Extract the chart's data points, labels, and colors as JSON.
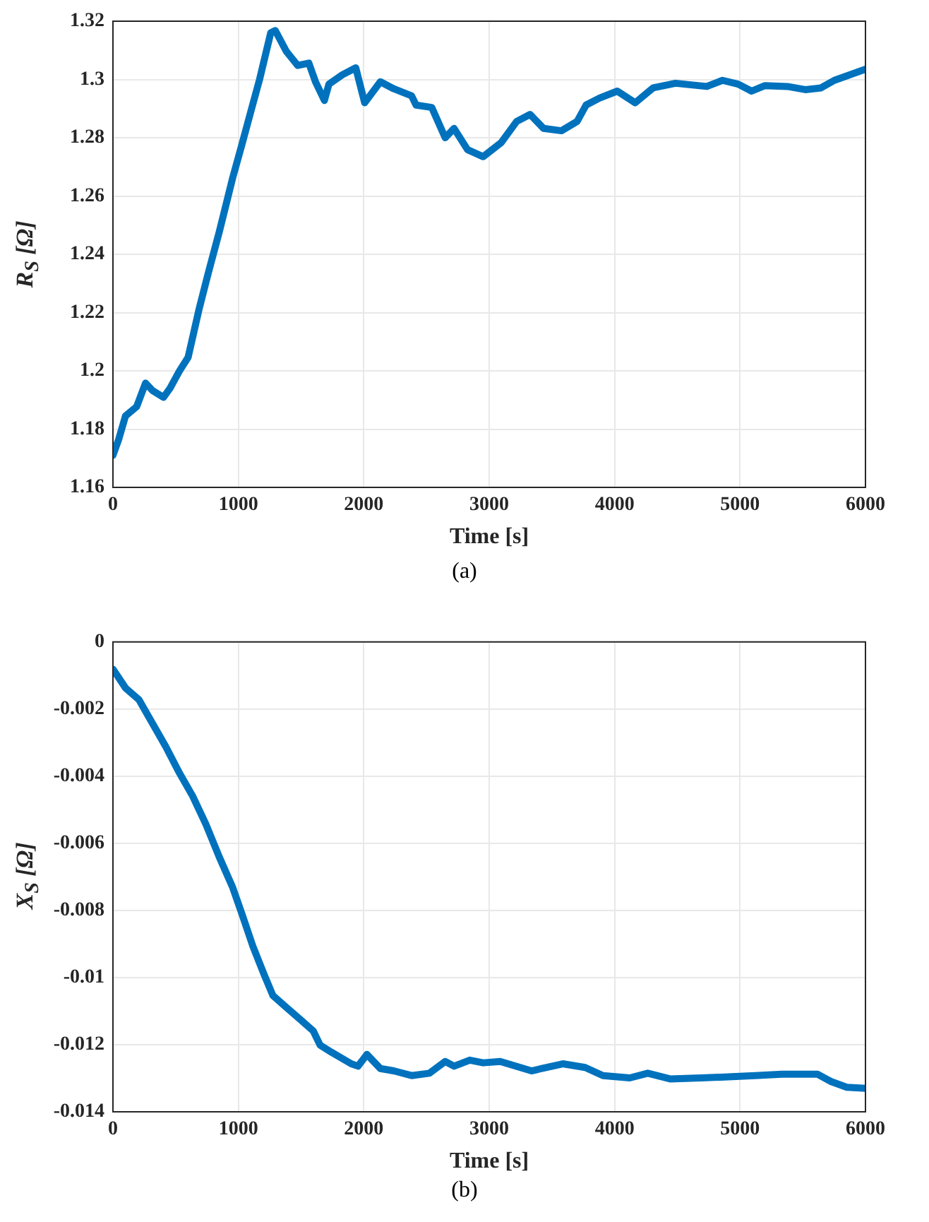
{
  "chart_data": [
    {
      "type": "line",
      "xlabel": "Time [s]",
      "ylabel": "R$_{S}$ [Ω]",
      "annotations": [
        "(a)"
      ],
      "color": "#0072bd",
      "grid": true,
      "marker": "none",
      "line_style": "solid",
      "x": [
        0,
        46,
        100,
        189,
        260,
        314,
        403,
        456,
        528,
        599,
        688,
        759,
        849,
        955,
        1027,
        1098,
        1169,
        1258,
        1294,
        1383,
        1473,
        1562,
        1615,
        1686,
        1722,
        1829,
        1936,
        2007,
        2132,
        2239,
        2381,
        2417,
        2542,
        2649,
        2720,
        2827,
        2952,
        3095,
        3219,
        3326,
        3433,
        3576,
        3701,
        3772,
        3879,
        4021,
        4164,
        4307,
        4485,
        4735,
        4860,
        4985,
        5092,
        5199,
        5378,
        5520,
        5645,
        5752,
        6000
      ],
      "values": [
        1.171,
        1.1765,
        1.1845,
        1.1877,
        1.1958,
        1.1933,
        1.1909,
        1.1941,
        1.1998,
        1.2046,
        1.2214,
        1.2334,
        1.2479,
        1.2663,
        1.2775,
        1.2888,
        1.3,
        1.316,
        1.3168,
        1.3096,
        1.3048,
        1.3056,
        1.2992,
        1.2928,
        1.2984,
        1.3016,
        1.304,
        1.292,
        1.2992,
        1.2968,
        1.2944,
        1.2912,
        1.2904,
        1.28,
        1.2832,
        1.2759,
        1.2735,
        1.2783,
        1.2856,
        1.288,
        1.2832,
        1.2824,
        1.2856,
        1.2912,
        1.2936,
        1.296,
        1.292,
        1.2971,
        1.2987,
        1.2976,
        1.2997,
        1.2984,
        1.296,
        1.2979,
        1.2976,
        1.2965,
        1.2971,
        1.2997,
        1.3035
      ],
      "xlim": [
        0,
        6000
      ],
      "xticks": [
        0,
        1000,
        2000,
        3000,
        4000,
        5000,
        6000
      ],
      "ylim": [
        1.16,
        1.32
      ],
      "yticks": [
        1.16,
        1.18,
        1.2,
        1.22,
        1.24,
        1.26,
        1.28,
        1.3,
        1.32
      ]
    },
    {
      "type": "line",
      "xlabel": "Time [s]",
      "ylabel": "X$_{S}$ [Ω]",
      "annotations": [
        "(b)"
      ],
      "color": "#0072bd",
      "grid": true,
      "marker": "none",
      "line_style": "solid",
      "x": [
        0,
        100,
        207,
        314,
        421,
        528,
        635,
        741,
        848,
        955,
        1027,
        1116,
        1205,
        1276,
        1383,
        1490,
        1597,
        1651,
        1740,
        1900,
        1954,
        2025,
        2132,
        2239,
        2381,
        2524,
        2649,
        2720,
        2845,
        2952,
        3088,
        3337,
        3587,
        3765,
        3907,
        4121,
        4264,
        4442,
        4692,
        4906,
        5120,
        5334,
        5619,
        5727,
        5851,
        6000
      ],
      "values": [
        -0.00081,
        -0.00137,
        -0.00172,
        -0.00242,
        -0.00312,
        -0.00389,
        -0.00459,
        -0.00543,
        -0.00641,
        -0.00732,
        -0.00809,
        -0.00907,
        -0.00991,
        -0.01054,
        -0.01089,
        -0.01124,
        -0.01159,
        -0.01201,
        -0.01222,
        -0.01257,
        -0.01264,
        -0.01229,
        -0.01271,
        -0.01278,
        -0.01292,
        -0.01285,
        -0.0125,
        -0.01264,
        -0.01246,
        -0.01254,
        -0.0125,
        -0.01278,
        -0.01257,
        -0.01268,
        -0.01292,
        -0.01299,
        -0.01285,
        -0.01302,
        -0.01299,
        -0.01296,
        -0.01292,
        -0.01288,
        -0.01288,
        -0.0131,
        -0.01327,
        -0.0133
      ],
      "xlim": [
        0,
        6000
      ],
      "xticks": [
        0,
        1000,
        2000,
        3000,
        4000,
        5000,
        6000
      ],
      "ylim": [
        -0.014,
        0
      ],
      "yticks": [
        -0.014,
        -0.012,
        -0.01,
        -0.008,
        -0.006,
        -0.004,
        -0.002,
        0
      ]
    }
  ]
}
